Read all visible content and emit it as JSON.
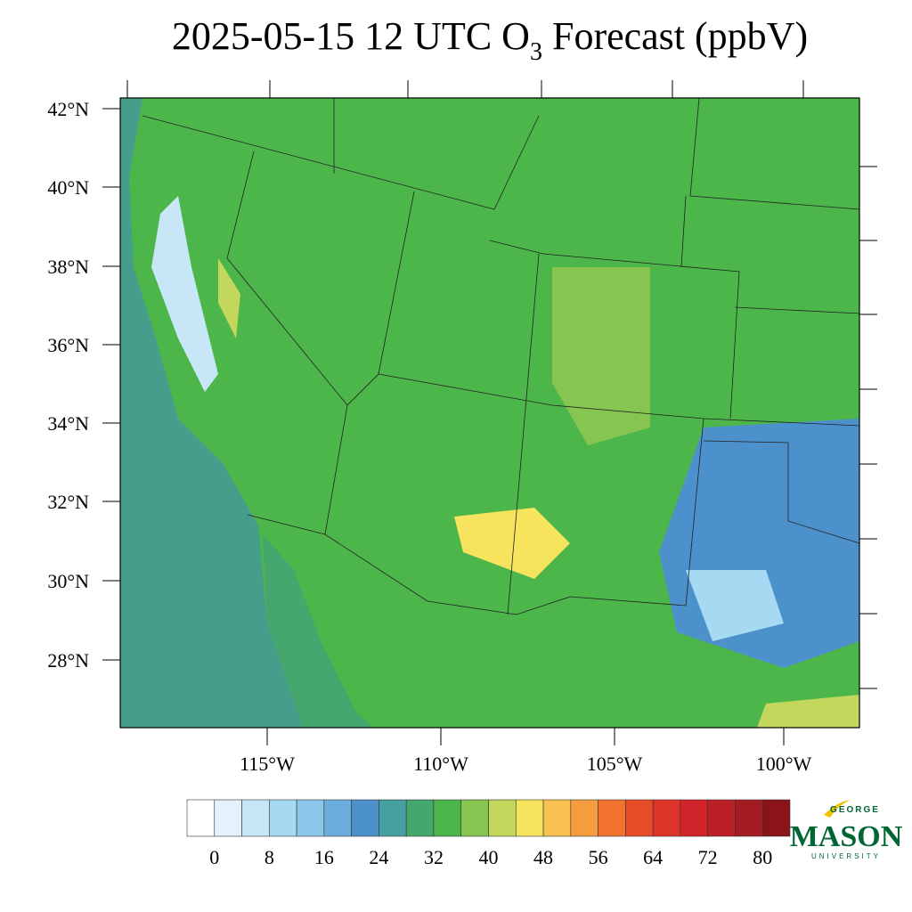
{
  "title": {
    "prefix": "2025-05-15 12 UTC O",
    "subscript": "3",
    "suffix": " Forecast (ppbV)"
  },
  "map": {
    "lat_labels": [
      "42°N",
      "40°N",
      "38°N",
      "36°N",
      "34°N",
      "32°N",
      "30°N",
      "28°N"
    ],
    "lon_labels": [
      "115°W",
      "110°W",
      "105°W",
      "100°W"
    ]
  },
  "colorbar": {
    "colors": [
      "#ffffff",
      "#e4f3fb",
      "#c7e7f7",
      "#a6daf3",
      "#8ac7ea",
      "#6baede",
      "#4c91cc",
      "#46a0a0",
      "#45a66e",
      "#4db64b",
      "#86c550",
      "#c3d75c",
      "#f6e45e",
      "#f8c150",
      "#f69c3e",
      "#f2722f",
      "#e84d2a",
      "#dd3328",
      "#d0232a",
      "#bd1f27",
      "#a51b22",
      "#8b1419"
    ],
    "ticks": [
      0,
      8,
      16,
      24,
      32,
      40,
      48,
      56,
      64,
      72,
      80
    ]
  },
  "logo": {
    "top": "GEORGE",
    "main": "MASON",
    "bottom": "UNIVERSITY"
  }
}
